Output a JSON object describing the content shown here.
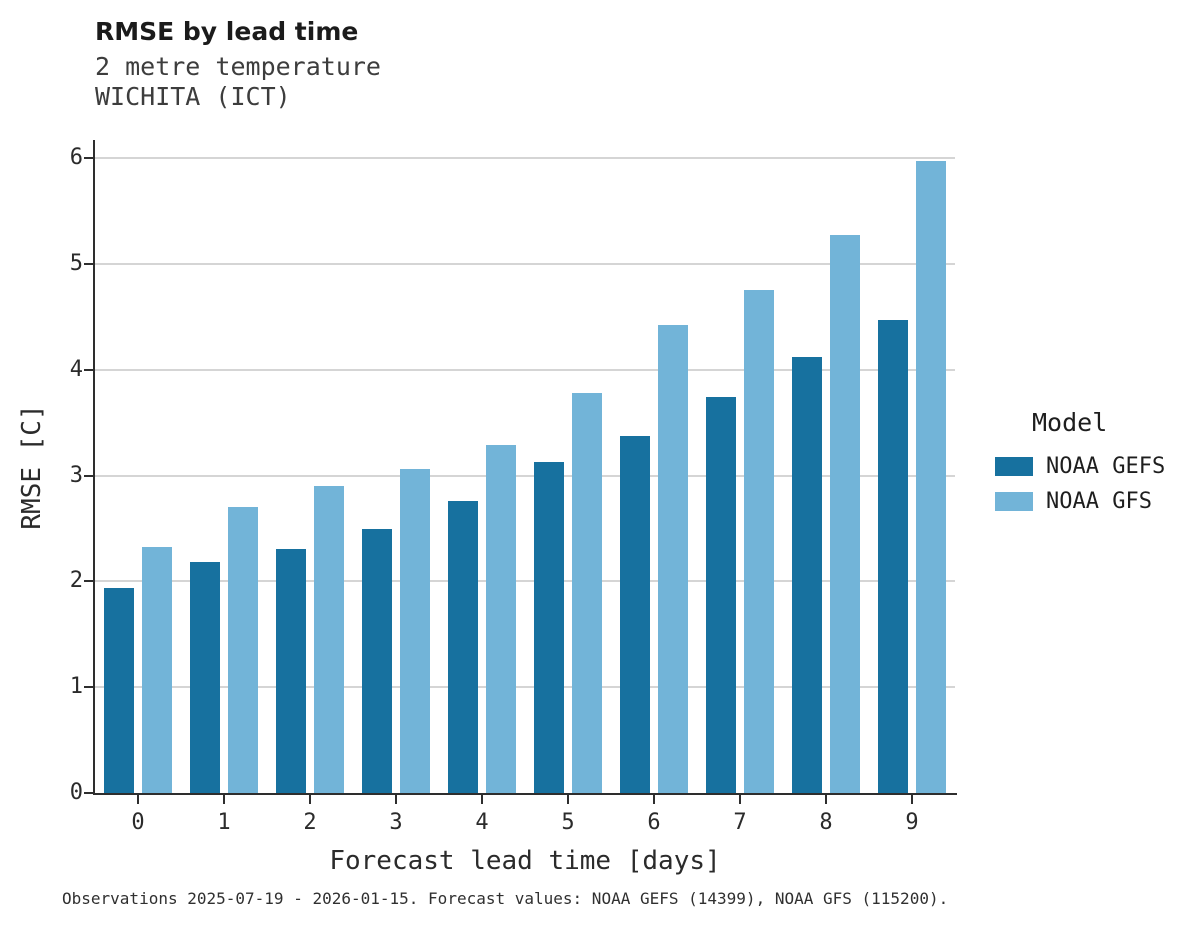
{
  "title": "RMSE by lead time",
  "subtitle1": "2 metre temperature",
  "subtitle2": "WICHITA (ICT)",
  "caption": "Observations 2025-07-19 - 2026-01-15. Forecast values: NOAA GEFS (14399), NOAA GFS (115200).",
  "legend": {
    "title": "Model"
  },
  "chart_data": {
    "type": "bar",
    "title": "RMSE by lead time",
    "subtitle": "2 metre temperature — WICHITA (ICT)",
    "xlabel": "Forecast lead time [days]",
    "ylabel": "RMSE [C]",
    "categories": [
      0,
      1,
      2,
      3,
      4,
      5,
      6,
      7,
      8,
      9
    ],
    "series": [
      {
        "name": "NOAA GEFS",
        "color": "#17719f",
        "values": [
          1.94,
          2.18,
          2.31,
          2.49,
          2.76,
          3.13,
          3.37,
          3.74,
          4.12,
          4.47
        ]
      },
      {
        "name": "NOAA GFS",
        "color": "#72b4d8",
        "values": [
          2.32,
          2.7,
          2.9,
          3.06,
          3.29,
          3.78,
          4.42,
          4.75,
          5.27,
          5.97
        ]
      }
    ],
    "ylim": [
      0,
      6
    ],
    "yticks": [
      0,
      1,
      2,
      3,
      4,
      5,
      6
    ],
    "grid": true,
    "legend_position": "right",
    "background": "#ffffff",
    "gridline_color": "#d5d5d5",
    "axis_color": "#2e2e2e"
  }
}
